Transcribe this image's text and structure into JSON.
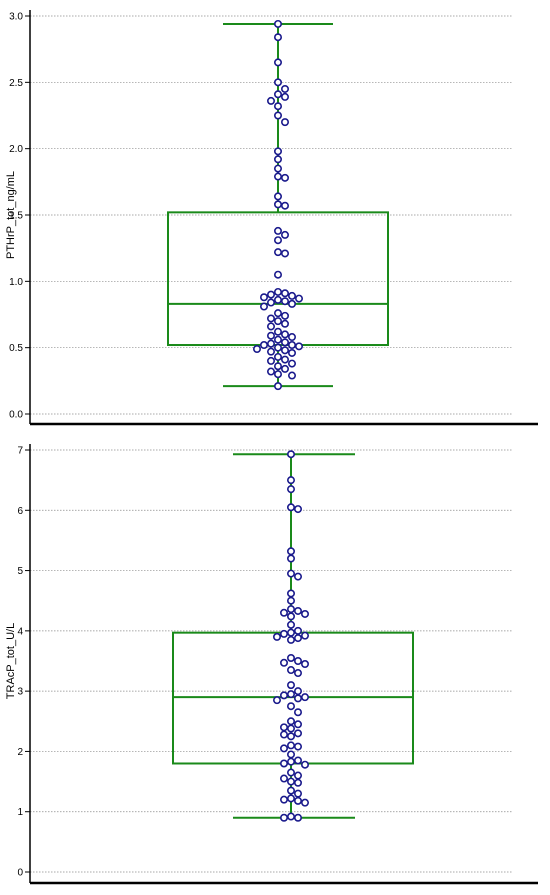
{
  "colors": {
    "box": "#1a8a1a",
    "point_stroke": "#1a1a8c",
    "point_fill": "#ffffff",
    "grid": "#8c8c8c",
    "axis": "#000000"
  },
  "chart_data": [
    {
      "type": "box",
      "title": "",
      "ylabel": "PTHrP_tot_ng/mL",
      "ylim": [
        0,
        3.0
      ],
      "yticks": [
        "0.0",
        "0.5",
        "1.0",
        "1.5",
        "2.0",
        "2.5",
        "3.0"
      ],
      "tick_values": [
        0,
        0.5,
        1.0,
        1.5,
        2.0,
        2.5,
        3.0
      ],
      "grid": true,
      "box": {
        "whisker_low": 0.21,
        "q1": 0.52,
        "median": 0.83,
        "q3": 1.52,
        "whisker_high": 2.94
      },
      "points": [
        2.94,
        2.84,
        2.65,
        2.5,
        2.45,
        2.41,
        2.39,
        2.36,
        2.32,
        2.25,
        2.2,
        1.98,
        1.92,
        1.85,
        1.79,
        1.78,
        1.64,
        1.58,
        1.57,
        1.38,
        1.35,
        1.31,
        1.22,
        1.21,
        1.05,
        0.92,
        0.91,
        0.9,
        0.89,
        0.88,
        0.87,
        0.86,
        0.85,
        0.84,
        0.83,
        0.81,
        0.76,
        0.74,
        0.72,
        0.7,
        0.68,
        0.66,
        0.62,
        0.6,
        0.59,
        0.58,
        0.56,
        0.54,
        0.53,
        0.52,
        0.52,
        0.51,
        0.5,
        0.49,
        0.48,
        0.47,
        0.46,
        0.43,
        0.41,
        0.4,
        0.38,
        0.36,
        0.34,
        0.32,
        0.3,
        0.29,
        0.21
      ]
    },
    {
      "type": "box",
      "title": "",
      "ylabel": "TRAcP_tot_U/L",
      "ylim": [
        0,
        7
      ],
      "yticks": [
        "0",
        "1",
        "2",
        "3",
        "4",
        "5",
        "6",
        "7"
      ],
      "tick_values": [
        0,
        1,
        2,
        3,
        4,
        5,
        6,
        7
      ],
      "grid": true,
      "box": {
        "whisker_low": 0.9,
        "q1": 1.8,
        "median": 2.9,
        "q3": 3.97,
        "whisker_high": 6.93
      },
      "points": [
        6.93,
        6.5,
        6.35,
        6.05,
        6.02,
        5.32,
        5.2,
        4.95,
        4.9,
        4.62,
        4.5,
        4.36,
        4.33,
        4.3,
        4.28,
        4.24,
        4.1,
        4.0,
        3.97,
        3.95,
        3.92,
        3.9,
        3.88,
        3.85,
        3.55,
        3.5,
        3.47,
        3.45,
        3.35,
        3.3,
        3.1,
        3.0,
        2.95,
        2.93,
        2.9,
        2.88,
        2.85,
        2.75,
        2.65,
        2.5,
        2.45,
        2.4,
        2.38,
        2.3,
        2.28,
        2.25,
        2.1,
        2.08,
        2.05,
        1.95,
        1.85,
        1.83,
        1.8,
        1.78,
        1.65,
        1.6,
        1.55,
        1.5,
        1.48,
        1.35,
        1.3,
        1.22,
        1.2,
        1.18,
        1.15,
        0.92,
        0.9,
        0.9
      ]
    }
  ]
}
